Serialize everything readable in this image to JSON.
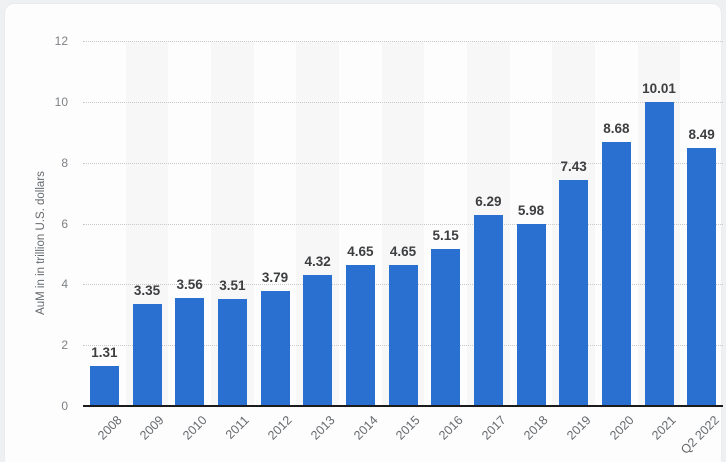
{
  "chart_data": {
    "type": "bar",
    "title": "",
    "xlabel": "",
    "ylabel": "AuM in in trillion U.S. dollars",
    "categories": [
      "2008",
      "2009",
      "2010",
      "2011",
      "2012",
      "2013",
      "2014",
      "2015",
      "2016",
      "2017",
      "2018",
      "2019",
      "2020",
      "2021",
      "Q2 2022"
    ],
    "values": [
      1.31,
      3.35,
      3.56,
      3.51,
      3.79,
      4.32,
      4.65,
      4.65,
      5.15,
      6.29,
      5.98,
      7.43,
      8.68,
      10.01,
      8.49
    ],
    "value_labels": [
      "1.31",
      "3.35",
      "3.56",
      "3.51",
      "3.79",
      "4.32",
      "4.65",
      "4.65",
      "5.15",
      "6.29",
      "5.98",
      "7.43",
      "8.68",
      "10.01",
      "8.49"
    ],
    "ylim": [
      0,
      12
    ],
    "yticks": [
      0,
      2,
      4,
      6,
      8,
      10,
      12
    ],
    "grid": "horizontal-dotted",
    "legend": "none",
    "bar_color": "#2a70d1",
    "stripe_color": "#f7f7f8",
    "striped_columns": "alternating, starting at 2009"
  }
}
